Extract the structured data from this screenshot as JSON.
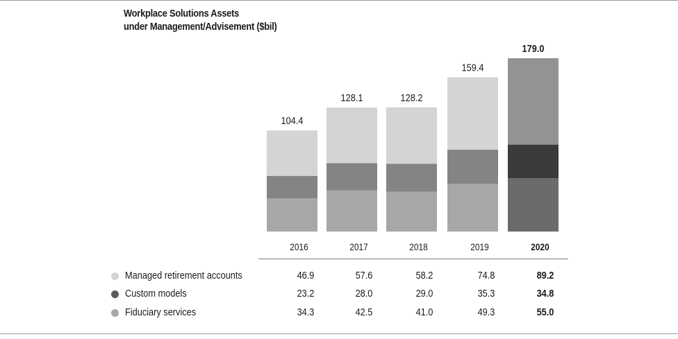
{
  "title": {
    "line1": "Workplace Solutions Assets",
    "line2": "under Management/Advisement ($bil)"
  },
  "chart_data": {
    "type": "bar",
    "stacked": true,
    "title": "Workplace Solutions Assets under Management/Advisement ($bil)",
    "categories": [
      "2016",
      "2017",
      "2018",
      "2019",
      "2020"
    ],
    "totals": [
      "104.4",
      "128.1",
      "128.2",
      "159.4",
      "179.0"
    ],
    "highlight_category": "2020",
    "series": [
      {
        "name": "Fiduciary services",
        "values": [
          34.3,
          42.5,
          41.0,
          49.3,
          55.0
        ],
        "color": "#a7a7aa",
        "highlight_color": "#6b6b6e"
      },
      {
        "name": "Custom models",
        "values": [
          23.2,
          28.0,
          29.0,
          35.3,
          34.8
        ],
        "color": "#848487",
        "highlight_color": "#3a3a3c"
      },
      {
        "name": "Managed retirement accounts",
        "values": [
          46.9,
          57.6,
          58.2,
          74.8,
          89.2
        ],
        "color": "#d4d4d5",
        "highlight_color": "#939396"
      }
    ],
    "ylim": [
      0,
      179
    ]
  },
  "table": {
    "rows": [
      {
        "label": "Managed retirement accounts",
        "dot_color": "#d4d4d5",
        "values": [
          "46.9",
          "57.6",
          "58.2",
          "74.8",
          "89.2"
        ]
      },
      {
        "label": "Custom models",
        "dot_color": "#5a5a5c",
        "values": [
          "23.2",
          "28.0",
          "29.0",
          "35.3",
          "34.8"
        ]
      },
      {
        "label": "Fiduciary services",
        "dot_color": "#a7a7aa",
        "values": [
          "34.3",
          "42.5",
          "41.0",
          "49.3",
          "55.0"
        ]
      }
    ]
  }
}
